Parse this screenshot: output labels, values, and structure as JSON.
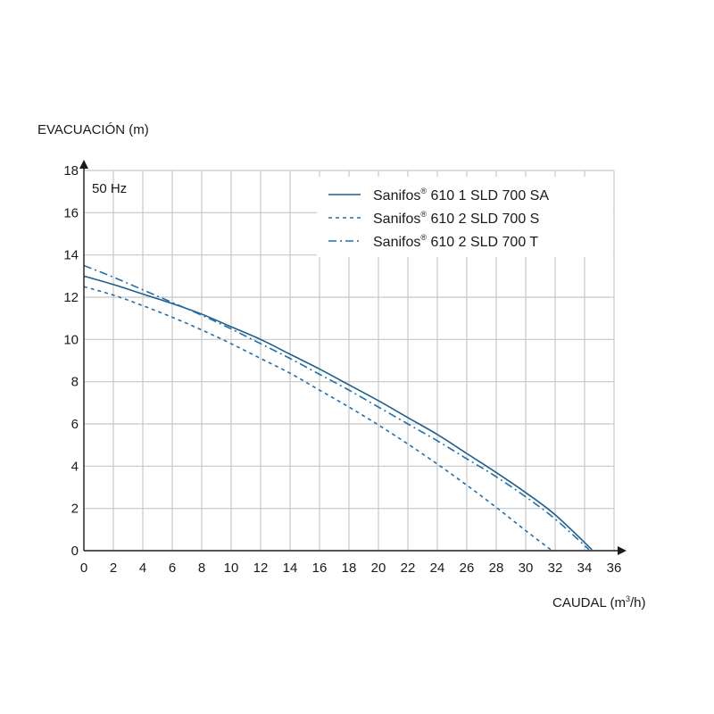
{
  "chart_data": {
    "type": "line",
    "ylabel": "EVACUACIÓN (m)",
    "xlabel_main": "CAUDAL (m",
    "xlabel_sup": "3",
    "xlabel_end": "/h)",
    "annotation": "50 Hz",
    "xlim": [
      0,
      36
    ],
    "ylim": [
      0,
      18
    ],
    "x_ticks": [
      0,
      2,
      4,
      6,
      8,
      10,
      12,
      14,
      16,
      18,
      20,
      22,
      24,
      26,
      28,
      30,
      32,
      34,
      36
    ],
    "y_ticks": [
      0,
      2,
      4,
      6,
      8,
      10,
      12,
      14,
      16,
      18
    ],
    "grid": true,
    "legend_position": "top-right",
    "series": [
      {
        "brand": "Sanifos",
        "mark": "®",
        "model": " 610 1 SLD 700 SA",
        "style": "solid",
        "color": "#1f5f8b",
        "x": [
          0,
          2,
          4,
          6,
          8,
          10,
          12,
          14,
          16,
          18,
          20,
          22,
          24,
          26,
          28,
          30,
          32,
          34.5
        ],
        "y": [
          13.0,
          12.6,
          12.15,
          11.7,
          11.2,
          10.6,
          10.0,
          9.3,
          8.6,
          7.85,
          7.1,
          6.3,
          5.5,
          4.6,
          3.7,
          2.75,
          1.7,
          0.05
        ]
      },
      {
        "brand": "Sanifos",
        "mark": "®",
        "model": " 610 2 SLD 700 S",
        "style": "dashed",
        "color": "#1f6fae",
        "x": [
          0,
          2,
          4,
          6,
          8,
          10,
          12,
          14,
          16,
          18,
          20,
          22,
          24,
          26,
          28,
          30,
          31.7
        ],
        "y": [
          12.5,
          12.1,
          11.6,
          11.05,
          10.45,
          9.8,
          9.1,
          8.4,
          7.6,
          6.8,
          5.95,
          5.05,
          4.1,
          3.1,
          2.05,
          0.95,
          0.05
        ]
      },
      {
        "brand": "Sanifos",
        "mark": "®",
        "model": " 610 2 SLD 700 T",
        "style": "dashdot",
        "color": "#1f6fae",
        "x": [
          0,
          2,
          4,
          6,
          8,
          10,
          12,
          14,
          16,
          18,
          20,
          22,
          24,
          26,
          28,
          30,
          32,
          34.3
        ],
        "y": [
          13.5,
          12.95,
          12.35,
          11.75,
          11.15,
          10.5,
          9.8,
          9.1,
          8.35,
          7.6,
          6.8,
          6.0,
          5.2,
          4.35,
          3.5,
          2.55,
          1.5,
          0.05
        ]
      }
    ]
  }
}
